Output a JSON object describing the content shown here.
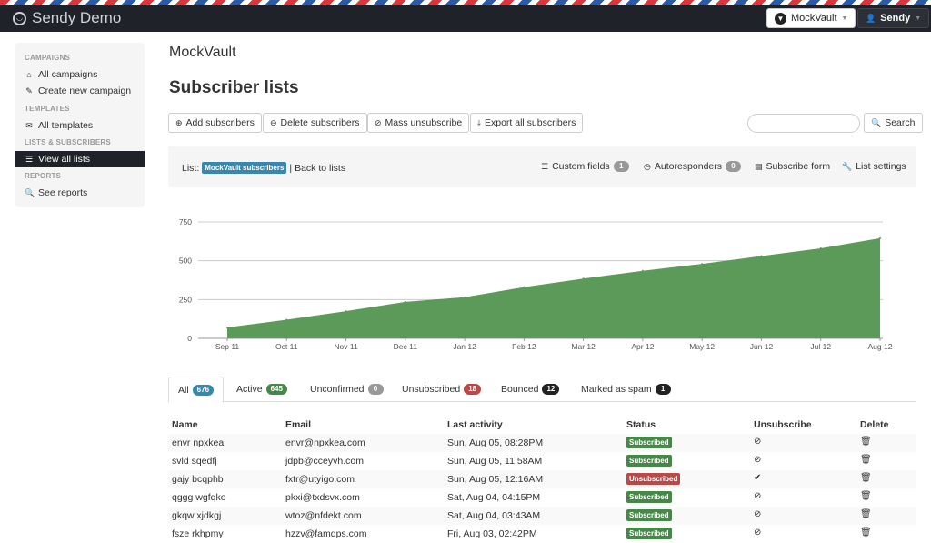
{
  "app": {
    "brand": "Sendy Demo",
    "brand_icon": "sendy-logo-icon",
    "app_switcher": "MockVault",
    "user_menu": "Sendy"
  },
  "sidebar": {
    "sections": {
      "campaigns": "CAMPAIGNS",
      "templates": "TEMPLATES",
      "lists": "LISTS & SUBSCRIBERS",
      "reports": "REPORTS"
    },
    "items": {
      "all_campaigns": "All campaigns",
      "create_campaign": "Create new campaign",
      "all_templates": "All templates",
      "view_all_lists": "View all lists",
      "see_reports": "See reports"
    }
  },
  "header": {
    "app_name": "MockVault",
    "page_title": "Subscriber lists"
  },
  "toolbar": {
    "add": "Add subscribers",
    "delete": "Delete subscribers",
    "mass_unsub": "Mass unsubscribe",
    "export": "Export all subscribers",
    "search_placeholder": "",
    "search": "Search"
  },
  "infobar": {
    "list_prefix": "List:",
    "list_name": "MockVault subscribers",
    "back": "| Back to lists",
    "custom_fields": "Custom fields",
    "custom_fields_count": "1",
    "autoresponders": "Autoresponders",
    "autoresponders_count": "0",
    "subscribe_form": "Subscribe form",
    "list_settings": "List settings"
  },
  "chart_data": {
    "type": "area",
    "x": [
      "Sep 11",
      "Oct 11",
      "Nov 11",
      "Dec 11",
      "Jan 12",
      "Feb 12",
      "Mar 12",
      "Apr 12",
      "May 12",
      "Jun 12",
      "Jul 12",
      "Aug 12"
    ],
    "values": [
      70,
      120,
      175,
      235,
      265,
      330,
      385,
      435,
      480,
      530,
      580,
      645
    ],
    "y_ticks": [
      "0",
      "250",
      "500",
      "750"
    ],
    "ylim": [
      0,
      750
    ],
    "color": "#5b9a58",
    "grid": true
  },
  "tabs": [
    {
      "label": "All",
      "count": "676",
      "color": "blue"
    },
    {
      "label": "Active",
      "count": "645",
      "color": "green"
    },
    {
      "label": "Unconfirmed",
      "count": "0",
      "color": "gray"
    },
    {
      "label": "Unsubscribed",
      "count": "18",
      "color": "red"
    },
    {
      "label": "Bounced",
      "count": "12",
      "color": "dark"
    },
    {
      "label": "Marked as spam",
      "count": "1",
      "color": "dark"
    }
  ],
  "table": {
    "headers": {
      "name": "Name",
      "email": "Email",
      "last_activity": "Last activity",
      "status": "Status",
      "unsubscribe": "Unsubscribe",
      "delete": "Delete"
    },
    "rows": [
      {
        "name": "envr npxkea",
        "email": "envr@npxkea.com",
        "last": "Sun, Aug 05, 08:28PM",
        "status": "Subscribed",
        "unsub_icon": "ban-icon"
      },
      {
        "name": "svld sqedfj",
        "email": "jdpb@cceyvh.com",
        "last": "Sun, Aug 05, 11:58AM",
        "status": "Subscribed",
        "unsub_icon": "ban-icon"
      },
      {
        "name": "gajy bcqphb",
        "email": "fxtr@utyigo.com",
        "last": "Sun, Aug 05, 12:16AM",
        "status": "Unsubscribed",
        "unsub_icon": "check-icon"
      },
      {
        "name": "qggg wgfqko",
        "email": "pkxi@txdsvx.com",
        "last": "Sat, Aug 04, 04:15PM",
        "status": "Subscribed",
        "unsub_icon": "ban-icon"
      },
      {
        "name": "gkqw xjdkgj",
        "email": "wtoz@nfdekt.com",
        "last": "Sat, Aug 04, 03:43AM",
        "status": "Subscribed",
        "unsub_icon": "ban-icon"
      },
      {
        "name": "fsze rkhpmy",
        "email": "hzzv@famqps.com",
        "last": "Fri, Aug 03, 02:42PM",
        "status": "Subscribed",
        "unsub_icon": "ban-icon"
      }
    ]
  }
}
